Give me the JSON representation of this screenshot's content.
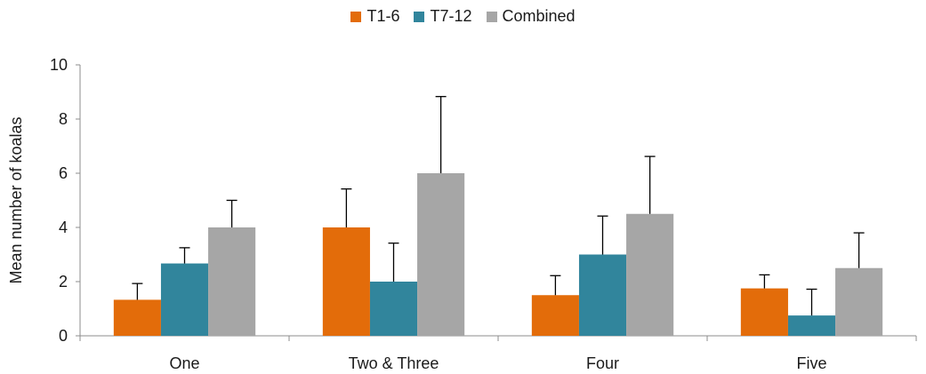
{
  "chart_data": {
    "type": "bar",
    "title": "",
    "xlabel": "",
    "ylabel": "Mean number of koalas",
    "ylim": [
      0,
      10
    ],
    "yticks": [
      0,
      2,
      4,
      6,
      8,
      10
    ],
    "grid": false,
    "legend_position": "top-center",
    "categories": [
      "One",
      "Two & Three",
      "Four",
      "Five"
    ],
    "series": [
      {
        "name": "T1-6",
        "color": "#E36C0A",
        "values": [
          1.33,
          4.0,
          1.5,
          1.75
        ],
        "errors": [
          0.6,
          1.42,
          0.72,
          0.5
        ]
      },
      {
        "name": "T7-12",
        "color": "#31859C",
        "values": [
          2.67,
          2.0,
          3.0,
          0.75
        ],
        "errors": [
          0.58,
          1.42,
          1.42,
          0.97
        ]
      },
      {
        "name": "Combined",
        "color": "#A6A6A6",
        "values": [
          4.0,
          6.0,
          4.5,
          2.5
        ],
        "errors": [
          1.0,
          2.83,
          2.12,
          1.3
        ]
      }
    ]
  }
}
